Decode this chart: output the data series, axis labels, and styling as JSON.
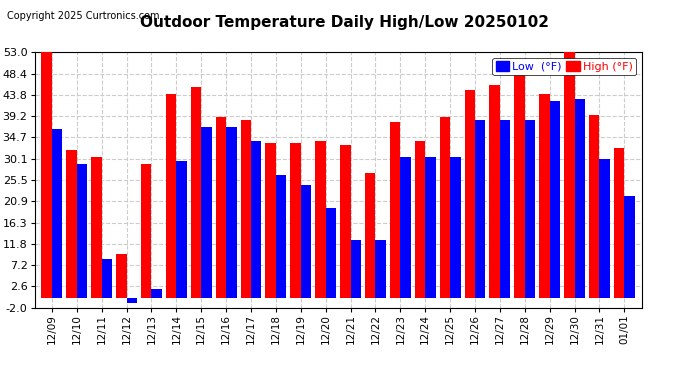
{
  "title": "Outdoor Temperature Daily High/Low 20250102",
  "copyright": "Copyright 2025 Curtronics.com",
  "dates": [
    "12/09",
    "12/10",
    "12/11",
    "12/12",
    "12/13",
    "12/14",
    "12/15",
    "12/16",
    "12/17",
    "12/18",
    "12/19",
    "12/20",
    "12/21",
    "12/22",
    "12/23",
    "12/24",
    "12/25",
    "12/26",
    "12/27",
    "12/28",
    "12/29",
    "12/30",
    "12/31",
    "01/01"
  ],
  "highs": [
    53.0,
    32.0,
    30.5,
    9.5,
    29.0,
    44.0,
    45.5,
    39.0,
    38.5,
    33.5,
    33.5,
    34.0,
    33.0,
    27.0,
    38.0,
    34.0,
    39.0,
    45.0,
    46.0,
    49.0,
    44.0,
    53.0,
    39.5,
    32.5
  ],
  "lows": [
    36.5,
    29.0,
    8.5,
    -1.0,
    2.0,
    29.5,
    37.0,
    37.0,
    34.0,
    26.5,
    24.5,
    19.5,
    12.5,
    12.5,
    30.5,
    30.5,
    30.5,
    38.5,
    38.5,
    38.5,
    42.5,
    43.0,
    30.0,
    22.0
  ],
  "high_color": "#ff0000",
  "low_color": "#0000ff",
  "ylim": [
    -2.0,
    53.0
  ],
  "yticks": [
    -2.0,
    2.6,
    7.2,
    11.8,
    16.3,
    20.9,
    25.5,
    30.1,
    34.7,
    39.2,
    43.8,
    48.4,
    53.0
  ],
  "background_color": "#ffffff",
  "grid_color": "#cccccc",
  "title_fontsize": 11,
  "bar_width": 0.42
}
